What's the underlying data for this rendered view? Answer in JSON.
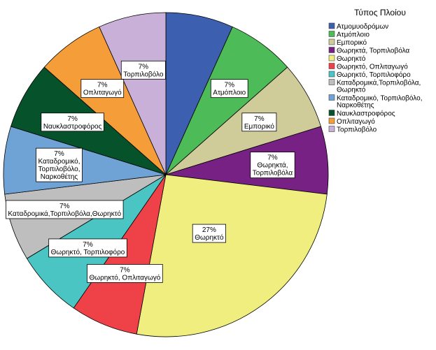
{
  "chart_data": {
    "type": "pie",
    "legend_title": "Τύπος Πλοίου",
    "legend_position": "top-right",
    "slices": [
      {
        "name": "Ατμομυοδρόμων",
        "value": 7,
        "pct_label": "7%",
        "label_lines": [
          "7%",
          "Ατμομυοδρόμων"
        ],
        "color": "#3c5fb0",
        "show_label": false
      },
      {
        "name": "Ατμόπλοιο",
        "value": 7,
        "pct_label": "7%",
        "label_lines": [
          "7%",
          "Ατμόπλοιο"
        ],
        "color": "#4dbb58",
        "show_label": true
      },
      {
        "name": "Εμπορικό",
        "value": 7,
        "pct_label": "7%",
        "label_lines": [
          "7%",
          "Εμπορικό"
        ],
        "color": "#cfcc99",
        "show_label": true
      },
      {
        "name": "Θωρηκτά, Τορπιλοβόλα",
        "value": 7,
        "pct_label": "7%",
        "label_lines": [
          "7%",
          "Θωρηκτά,",
          "Τορπιλοβόλα"
        ],
        "color": "#782184",
        "show_label": true
      },
      {
        "name": "Θωρηκτό",
        "value": 27,
        "pct_label": "27%",
        "label_lines": [
          "27%",
          "Θωρηκτό"
        ],
        "color": "#f1ee80",
        "show_label": true
      },
      {
        "name": "Θωρηκτό, Οπλιταγωγό",
        "value": 7,
        "pct_label": "7%",
        "label_lines": [
          "7%",
          "Θωρηκτό, Οπλιταγωγό"
        ],
        "color": "#ee4148",
        "show_label": true
      },
      {
        "name": "Θωρηκτό, Τορπιλοφόρο",
        "value": 7,
        "pct_label": "7%",
        "label_lines": [
          "7%",
          "Θωρηκτό, Τορπιλοφόρο"
        ],
        "color": "#4bc4c4",
        "show_label": true
      },
      {
        "name": "Καταδρομικά,Τορπιλοβόλα, Θωρηκτό",
        "value": 7,
        "pct_label": "7%",
        "label_lines": [
          "7%",
          "Καταδρομικά,Τορπιλοβόλα,Θωρηκτό"
        ],
        "color": "#bebebe",
        "show_label": true
      },
      {
        "name": "Καταδρομικό, Τορπιλοβόλο, Ναρκοθέτης",
        "value": 7,
        "pct_label": "7%",
        "label_lines": [
          "7%",
          "Καταδρομικό,",
          "Τορπιλοβόλο,",
          "Ναρκοθέτης"
        ],
        "color": "#6fa3d6",
        "show_label": true
      },
      {
        "name": "Ναυκλαστροφόρος",
        "value": 7,
        "pct_label": "7%",
        "label_lines": [
          "7%",
          "Ναυκλαστροφόρος"
        ],
        "color": "#06522b",
        "show_label": true
      },
      {
        "name": "Οπλιταγωγό",
        "value": 7,
        "pct_label": "7%",
        "label_lines": [
          "7%",
          "Οπλιταγωγό"
        ],
        "color": "#f59d38",
        "show_label": true
      },
      {
        "name": "Τορπιλοβόλο",
        "value": 7,
        "pct_label": "7%",
        "label_lines": [
          "7%",
          "Τορπιλοβόλο"
        ],
        "color": "#c9b0d9",
        "show_label": true
      }
    ],
    "legend_entries": [
      [
        "Ατμομυοδρόμων"
      ],
      [
        "Ατμόπλοιο"
      ],
      [
        "Εμπορικό"
      ],
      [
        "Θωρηκτά, Τορπιλοβόλα"
      ],
      [
        "Θωρηκτό"
      ],
      [
        "Θωρηκτό, Οπλιταγωγό"
      ],
      [
        "Θωρηκτό, Τορπιλοφόρο"
      ],
      [
        "Καταδρομικά,Τορπιλοβόλα,",
        "Θωρηκτό"
      ],
      [
        "Καταδρομικό, Τορπιλοβόλο,",
        "Ναρκοθέτης"
      ],
      [
        "Ναυκλαστροφόρος"
      ],
      [
        "Οπλιταγωγό"
      ],
      [
        "Τορπιλοβόλο"
      ]
    ]
  }
}
